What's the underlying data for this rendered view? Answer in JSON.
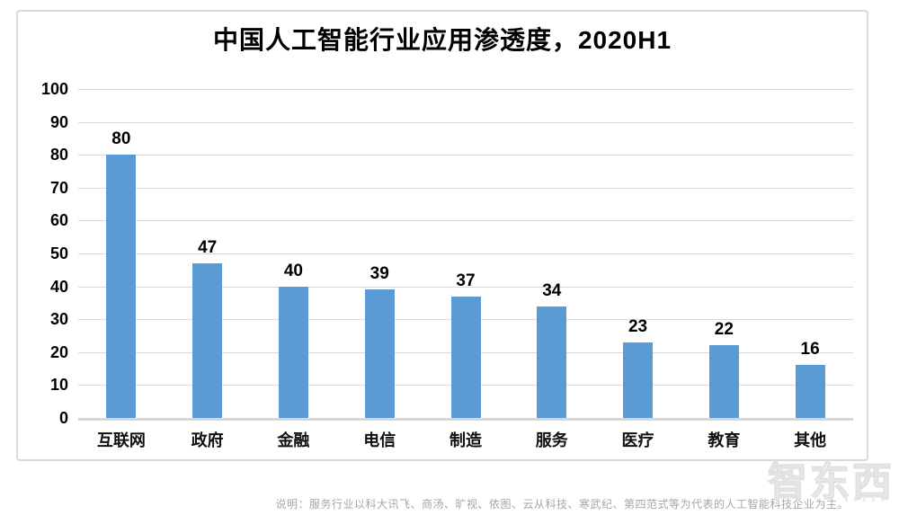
{
  "title": "中国人工智能行业应用渗透度，2020H1",
  "note": "说明：服务行业以科大讯飞、商汤、旷视、依图、云从科技、寒武纪、第四范式等为代表的人工智能科技企业为主。",
  "watermark": "智东西",
  "colors": {
    "bar": "#5B9BD5",
    "gridline": "#D9D9D9",
    "axis_line": "#D6D6D6",
    "label": "#000000",
    "note": "#A6A6A6",
    "frame_border": "#D9D9D9",
    "watermark": "#E2E2E2"
  },
  "chart_data": {
    "type": "bar",
    "title": "中国人工智能行业应用渗透度，2020H1",
    "categories": [
      "互联网",
      "政府",
      "金融",
      "电信",
      "制造",
      "服务",
      "医疗",
      "教育",
      "其他"
    ],
    "values": [
      80,
      47,
      40,
      39,
      37,
      34,
      23,
      22,
      16
    ],
    "xlabel": "",
    "ylabel": "",
    "ylim": [
      0,
      100
    ],
    "yticks": [
      0,
      10,
      20,
      30,
      40,
      50,
      60,
      70,
      80,
      90,
      100
    ],
    "grid": true,
    "legend": "none",
    "data_labels": true,
    "bar_color": "#5B9BD5"
  }
}
